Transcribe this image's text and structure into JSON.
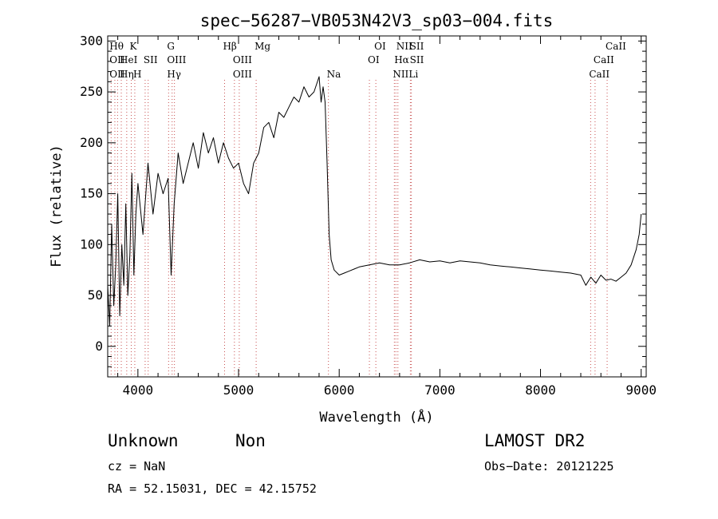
{
  "chart_data": {
    "type": "line",
    "title": "spec−56287−VB053N42V3_sp03−004.fits",
    "xlabel": "Wavelength (Å)",
    "ylabel": "Flux (relative)",
    "xlim": [
      3700,
      9050
    ],
    "ylim": [
      -30,
      305
    ],
    "xticks": [
      4000,
      5000,
      6000,
      7000,
      8000,
      9000
    ],
    "yticks": [
      0,
      50,
      100,
      150,
      200,
      250,
      300
    ],
    "grid": false,
    "line_color": "#000000",
    "marker_color": "#c85050",
    "series": [
      {
        "x": [
          3700,
          3720,
          3740,
          3760,
          3780,
          3800,
          3820,
          3840,
          3860,
          3880,
          3900,
          3920,
          3940,
          3960,
          3980,
          4000,
          4050,
          4100,
          4150,
          4200,
          4250,
          4300,
          4330,
          4360,
          4400,
          4450,
          4500,
          4550,
          4600,
          4650,
          4700,
          4750,
          4800,
          4850,
          4900,
          4950,
          5000,
          5050,
          5100,
          5150,
          5200,
          5250,
          5300,
          5350,
          5400,
          5450,
          5500,
          5550,
          5600,
          5650,
          5700,
          5750,
          5800,
          5820,
          5840,
          5860,
          5880,
          5900,
          5920,
          5950,
          6000,
          6050,
          6100,
          6150,
          6200,
          6300,
          6400,
          6500,
          6600,
          6700,
          6800,
          6900,
          7000,
          7100,
          7200,
          7300,
          7400,
          7500,
          7600,
          7700,
          7800,
          7900,
          8000,
          8100,
          8200,
          8300,
          8400,
          8450,
          8500,
          8550,
          8600,
          8650,
          8700,
          8750,
          8800,
          8850,
          8900,
          8950,
          8980,
          9000
        ],
        "y": [
          60,
          20,
          120,
          40,
          80,
          150,
          30,
          100,
          60,
          140,
          50,
          90,
          170,
          70,
          130,
          160,
          110,
          180,
          130,
          170,
          150,
          165,
          70,
          140,
          190,
          160,
          180,
          200,
          175,
          210,
          190,
          205,
          180,
          200,
          185,
          175,
          180,
          160,
          150,
          180,
          190,
          215,
          220,
          205,
          230,
          225,
          235,
          245,
          240,
          255,
          245,
          250,
          265,
          240,
          255,
          240,
          180,
          110,
          85,
          75,
          70,
          72,
          74,
          76,
          78,
          80,
          82,
          80,
          80,
          82,
          85,
          83,
          84,
          82,
          84,
          83,
          82,
          80,
          79,
          78,
          77,
          76,
          75,
          74,
          73,
          72,
          70,
          60,
          68,
          62,
          70,
          65,
          66,
          64,
          68,
          72,
          80,
          95,
          110,
          130
        ]
      }
    ],
    "line_markers": [
      {
        "x": 3734,
        "rows": [
          {
            "text": "Hθ",
            "row": 0
          },
          {
            "text": "OII",
            "row": 1
          },
          {
            "text": "OII",
            "row": 2
          }
        ]
      },
      {
        "x": 3771,
        "rows": []
      },
      {
        "x": 3798,
        "rows": []
      },
      {
        "x": 3835,
        "rows": [
          {
            "text": "HeI",
            "row": 1
          },
          {
            "text": "Hη",
            "row": 2
          }
        ]
      },
      {
        "x": 3889,
        "rows": []
      },
      {
        "x": 3934,
        "rows": [
          {
            "text": "K",
            "row": 0
          }
        ]
      },
      {
        "x": 3969,
        "rows": [
          {
            "text": "H",
            "row": 2
          }
        ]
      },
      {
        "x": 4072,
        "rows": [
          {
            "text": "SII",
            "row": 1
          }
        ]
      },
      {
        "x": 4102,
        "rows": []
      },
      {
        "x": 4305,
        "rows": [
          {
            "text": "G",
            "row": 0
          },
          {
            "text": "OIII",
            "row": 1
          },
          {
            "text": "Hγ",
            "row": 2
          }
        ]
      },
      {
        "x": 4340,
        "rows": []
      },
      {
        "x": 4363,
        "rows": []
      },
      {
        "x": 4861,
        "rows": [
          {
            "text": "Hβ",
            "row": 0
          }
        ]
      },
      {
        "x": 4959,
        "rows": [
          {
            "text": "OIII",
            "row": 1
          },
          {
            "text": "OIII",
            "row": 2
          }
        ]
      },
      {
        "x": 5007,
        "rows": []
      },
      {
        "x": 5175,
        "rows": [
          {
            "text": "Mg",
            "row": 0
          }
        ]
      },
      {
        "x": 5893,
        "rows": [
          {
            "text": "Na",
            "row": 2
          }
        ]
      },
      {
        "x": 6300,
        "rows": [
          {
            "text": "OI",
            "row": 1
          }
        ]
      },
      {
        "x": 6364,
        "rows": [
          {
            "text": "OI",
            "row": 0
          }
        ]
      },
      {
        "x": 6548,
        "rows": [
          {
            "text": "NII",
            "row": 2
          }
        ]
      },
      {
        "x": 6563,
        "rows": [
          {
            "text": "Hα",
            "row": 1
          }
        ]
      },
      {
        "x": 6583,
        "rows": [
          {
            "text": "NII",
            "row": 0
          }
        ]
      },
      {
        "x": 6707,
        "rows": [
          {
            "text": "Li",
            "row": 2
          }
        ]
      },
      {
        "x": 6717,
        "rows": [
          {
            "text": "SII",
            "row": 0
          },
          {
            "text": "SII",
            "row": 1
          }
        ]
      },
      {
        "x": 8498,
        "rows": [
          {
            "text": "CaII",
            "row": 2
          }
        ]
      },
      {
        "x": 8542,
        "rows": [
          {
            "text": "CaII",
            "row": 1
          }
        ]
      },
      {
        "x": 8662,
        "rows": [
          {
            "text": "CaII",
            "row": 0
          }
        ]
      }
    ]
  },
  "info": {
    "object_type": "Unknown",
    "subclass": "Non",
    "survey": "LAMOST DR2",
    "redshift": "cz = NaN",
    "obs_date": "Obs−Date: 20121225",
    "coords": "RA =  52.15031, DEC =  42.15752"
  }
}
